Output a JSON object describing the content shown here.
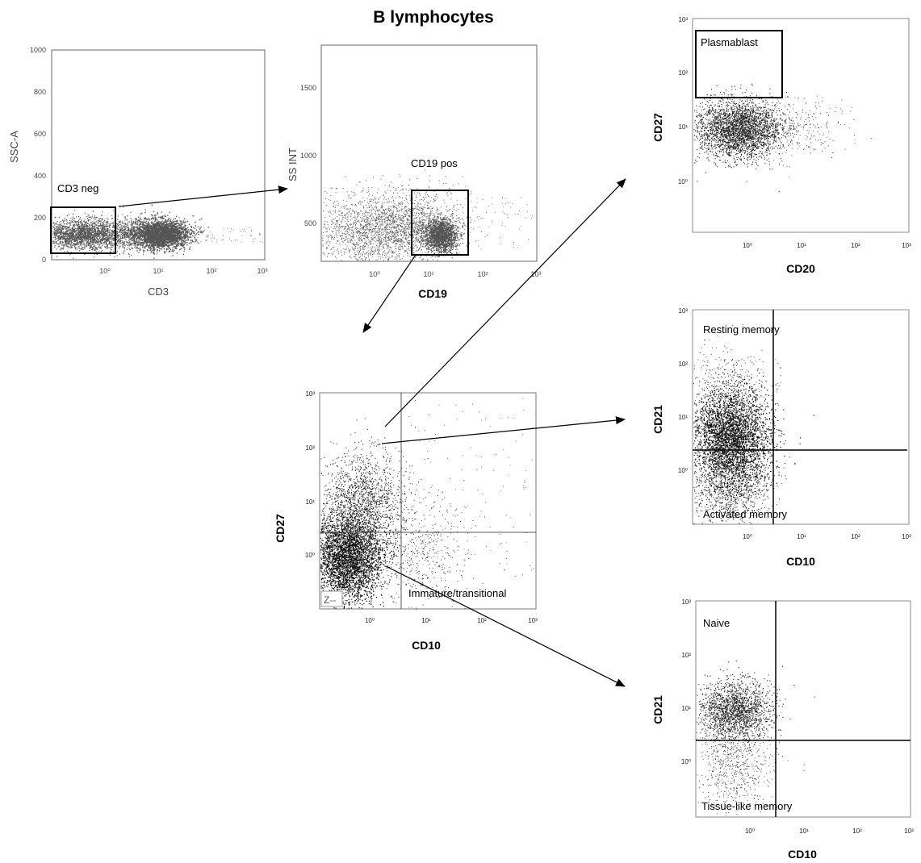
{
  "figure_title": "B lymphocytes",
  "panels": {
    "cd3": {
      "xlabel": "CD3",
      "ylabel": "SSC-A",
      "xticks": [
        "10⁰",
        "10¹",
        "10²",
        "10³"
      ],
      "yticks": [
        "0",
        "200",
        "400",
        "600",
        "800",
        "1000"
      ],
      "gate": "CD3 neg"
    },
    "cd19": {
      "xlabel": "CD19",
      "ylabel": "SS INT",
      "xticks": [
        "10⁰",
        "10¹",
        "10²",
        "10³"
      ],
      "yticks": [
        "500",
        "1000",
        "1500"
      ],
      "gate": "CD19 pos"
    },
    "cd27_cd10": {
      "xlabel": "CD10",
      "ylabel": "CD27",
      "xticks": [
        "10⁰",
        "10¹",
        "10²",
        "10³"
      ],
      "yticks": [
        "10⁰",
        "10¹",
        "10²",
        "10³"
      ],
      "gate": "Immature/transitional",
      "corner_mark": "Z--"
    },
    "plasmablast": {
      "xlabel": "CD20",
      "ylabel": "CD27",
      "xticks": [
        "10⁰",
        "10¹",
        "10²",
        "10³"
      ],
      "yticks": [
        "10⁰",
        "10¹",
        "10²",
        "10³"
      ],
      "gate": "Plasmablast"
    },
    "memory": {
      "xlabel": "CD10",
      "ylabel": "CD21",
      "xticks": [
        "10⁰",
        "10¹",
        "10²",
        "10³"
      ],
      "yticks": [
        "10⁰",
        "10¹",
        "10²",
        "10³"
      ],
      "gate_top": "Resting memory",
      "gate_bottom": "Activated memory"
    },
    "naive": {
      "xlabel": "CD10",
      "ylabel": "CD21",
      "xticks": [
        "10⁰",
        "10¹",
        "10²",
        "10³"
      ],
      "yticks": [
        "10⁰",
        "10¹",
        "10²",
        "10³"
      ],
      "gate_top": "Naive",
      "gate_bottom": "Tissue-like memory"
    }
  }
}
